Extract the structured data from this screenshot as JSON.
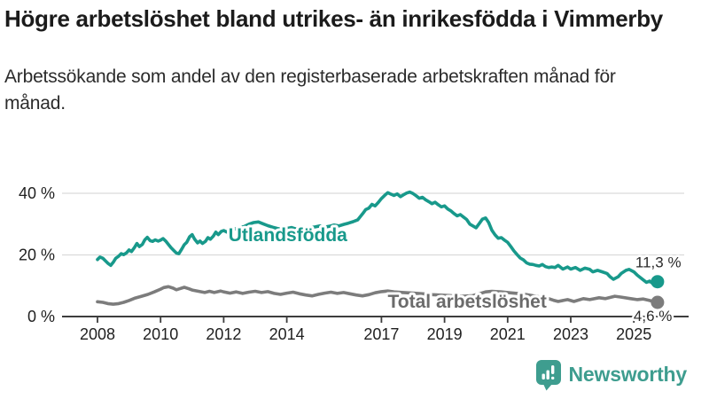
{
  "header": {
    "title": "Högre arbetslöshet bland utrikes- än inrikesfödda i Vimmerby",
    "subtitle": "Arbetssökande som andel av den registerbaserade arbetskraften månad för månad."
  },
  "branding": {
    "logo_text": "Newsworthy",
    "logo_color": "#3E9D8F"
  },
  "chart_data": {
    "type": "line",
    "title": "Högre arbetslöshet bland utrikes- än inrikesfödda i Vimmerby",
    "xlabel": "",
    "ylabel": "",
    "unit": "%",
    "xlim": [
      2008,
      2025.9
    ],
    "ylim": [
      0,
      45
    ],
    "grid": "horizontal",
    "legend_position": "inline-labels",
    "x_ticks": [
      {
        "year": 2008,
        "label": "2008"
      },
      {
        "year": 2010,
        "label": "2010"
      },
      {
        "year": 2012,
        "label": "2012"
      },
      {
        "year": 2014,
        "label": "2014"
      },
      {
        "year": 2017,
        "label": "2017"
      },
      {
        "year": 2019,
        "label": "2019"
      },
      {
        "year": 2021,
        "label": "2021"
      },
      {
        "year": 2023,
        "label": "2023"
      },
      {
        "year": 2025,
        "label": "2025"
      }
    ],
    "y_ticks": [
      {
        "value": 0,
        "label": "0 %"
      },
      {
        "value": 20,
        "label": "20 %"
      },
      {
        "value": 40,
        "label": "40 %"
      }
    ],
    "y_gridlines": [
      20,
      40
    ],
    "series": [
      {
        "id": "utlandsfodda",
        "name": "Utlandsfödda",
        "color": "#18998B",
        "label_color": "#18998B",
        "end_value": 11.3,
        "end_label": "11,3 %",
        "label_pos": [
          2012.15,
          24.4
        ],
        "end_label_offset": [
          -25,
          -16
        ],
        "points": [
          [
            2008.0,
            18.5
          ],
          [
            2008.08,
            19.3
          ],
          [
            2008.17,
            18.9
          ],
          [
            2008.25,
            18.1
          ],
          [
            2008.33,
            17.3
          ],
          [
            2008.42,
            16.6
          ],
          [
            2008.5,
            17.6
          ],
          [
            2008.58,
            18.9
          ],
          [
            2008.67,
            19.6
          ],
          [
            2008.75,
            20.4
          ],
          [
            2008.83,
            20.1
          ],
          [
            2008.92,
            20.7
          ],
          [
            2009.0,
            21.6
          ],
          [
            2009.08,
            21.1
          ],
          [
            2009.17,
            22.4
          ],
          [
            2009.25,
            23.7
          ],
          [
            2009.33,
            22.7
          ],
          [
            2009.42,
            23.4
          ],
          [
            2009.5,
            24.9
          ],
          [
            2009.58,
            25.7
          ],
          [
            2009.67,
            24.6
          ],
          [
            2009.75,
            24.4
          ],
          [
            2009.83,
            24.9
          ],
          [
            2009.92,
            24.5
          ],
          [
            2010.0,
            24.8
          ],
          [
            2010.08,
            25.3
          ],
          [
            2010.17,
            24.4
          ],
          [
            2010.25,
            23.4
          ],
          [
            2010.33,
            22.4
          ],
          [
            2010.42,
            21.4
          ],
          [
            2010.5,
            20.6
          ],
          [
            2010.58,
            20.4
          ],
          [
            2010.67,
            21.9
          ],
          [
            2010.75,
            23.3
          ],
          [
            2010.83,
            24.1
          ],
          [
            2010.92,
            25.9
          ],
          [
            2011.0,
            26.6
          ],
          [
            2011.08,
            25.1
          ],
          [
            2011.17,
            23.9
          ],
          [
            2011.25,
            24.5
          ],
          [
            2011.33,
            23.7
          ],
          [
            2011.42,
            24.4
          ],
          [
            2011.5,
            25.6
          ],
          [
            2011.58,
            25.1
          ],
          [
            2011.67,
            26.1
          ],
          [
            2011.75,
            27.4
          ],
          [
            2011.83,
            26.6
          ],
          [
            2011.92,
            27.6
          ],
          [
            2012.0,
            27.9
          ],
          [
            2012.1,
            27.4
          ],
          [
            2012.2,
            28.0
          ],
          [
            2012.35,
            28.4
          ],
          [
            2012.5,
            28.8
          ],
          [
            2012.65,
            29.2
          ],
          [
            2012.8,
            30.0
          ],
          [
            2012.95,
            30.5
          ],
          [
            2013.1,
            30.7
          ],
          [
            2013.25,
            30.1
          ],
          [
            2013.4,
            29.5
          ],
          [
            2013.55,
            29.0
          ],
          [
            2013.7,
            28.6
          ],
          [
            2013.85,
            28.3
          ],
          [
            2014.0,
            28.6
          ],
          [
            2014.15,
            28.9
          ],
          [
            2014.3,
            28.4
          ],
          [
            2014.45,
            28.8
          ],
          [
            2014.6,
            28.5
          ],
          [
            2014.75,
            28.9
          ],
          [
            2014.9,
            29.1
          ],
          [
            2015.05,
            29.4
          ],
          [
            2015.2,
            29.0
          ],
          [
            2015.35,
            29.3
          ],
          [
            2015.5,
            29.7
          ],
          [
            2015.65,
            29.4
          ],
          [
            2015.8,
            29.9
          ],
          [
            2015.95,
            30.3
          ],
          [
            2016.1,
            30.8
          ],
          [
            2016.25,
            31.4
          ],
          [
            2016.4,
            33.3
          ],
          [
            2016.5,
            34.7
          ],
          [
            2016.6,
            35.2
          ],
          [
            2016.7,
            36.4
          ],
          [
            2016.8,
            35.9
          ],
          [
            2016.9,
            37.0
          ],
          [
            2017.0,
            38.3
          ],
          [
            2017.1,
            39.3
          ],
          [
            2017.2,
            40.2
          ],
          [
            2017.3,
            39.7
          ],
          [
            2017.4,
            39.3
          ],
          [
            2017.5,
            39.8
          ],
          [
            2017.6,
            38.9
          ],
          [
            2017.7,
            39.5
          ],
          [
            2017.8,
            40.1
          ],
          [
            2017.9,
            40.4
          ],
          [
            2018.0,
            39.9
          ],
          [
            2018.1,
            39.2
          ],
          [
            2018.2,
            38.4
          ],
          [
            2018.3,
            38.7
          ],
          [
            2018.4,
            37.9
          ],
          [
            2018.5,
            37.3
          ],
          [
            2018.6,
            36.6
          ],
          [
            2018.7,
            37.1
          ],
          [
            2018.8,
            36.3
          ],
          [
            2018.9,
            35.6
          ],
          [
            2019.0,
            35.9
          ],
          [
            2019.1,
            34.9
          ],
          [
            2019.2,
            34.3
          ],
          [
            2019.3,
            33.4
          ],
          [
            2019.4,
            32.7
          ],
          [
            2019.5,
            33.1
          ],
          [
            2019.6,
            32.3
          ],
          [
            2019.7,
            31.5
          ],
          [
            2019.8,
            30.0
          ],
          [
            2019.9,
            29.4
          ],
          [
            2020.0,
            28.8
          ],
          [
            2020.1,
            30.2
          ],
          [
            2020.2,
            31.6
          ],
          [
            2020.3,
            32.0
          ],
          [
            2020.4,
            30.5
          ],
          [
            2020.5,
            28.0
          ],
          [
            2020.6,
            26.5
          ],
          [
            2020.7,
            25.4
          ],
          [
            2020.8,
            25.6
          ],
          [
            2020.9,
            24.8
          ],
          [
            2021.0,
            24.1
          ],
          [
            2021.1,
            22.7
          ],
          [
            2021.2,
            21.3
          ],
          [
            2021.3,
            20.1
          ],
          [
            2021.4,
            19.0
          ],
          [
            2021.5,
            18.4
          ],
          [
            2021.6,
            17.4
          ],
          [
            2021.7,
            17.0
          ],
          [
            2021.8,
            16.9
          ],
          [
            2021.9,
            16.6
          ],
          [
            2022.0,
            16.4
          ],
          [
            2022.1,
            16.9
          ],
          [
            2022.2,
            16.2
          ],
          [
            2022.3,
            15.9
          ],
          [
            2022.4,
            16.1
          ],
          [
            2022.5,
            15.9
          ],
          [
            2022.6,
            16.6
          ],
          [
            2022.75,
            15.4
          ],
          [
            2022.9,
            16.1
          ],
          [
            2023.0,
            15.4
          ],
          [
            2023.15,
            15.9
          ],
          [
            2023.3,
            15.0
          ],
          [
            2023.45,
            15.7
          ],
          [
            2023.6,
            15.3
          ],
          [
            2023.7,
            14.5
          ],
          [
            2023.85,
            15.0
          ],
          [
            2024.0,
            14.5
          ],
          [
            2024.15,
            14.0
          ],
          [
            2024.25,
            12.9
          ],
          [
            2024.35,
            12.1
          ],
          [
            2024.5,
            12.9
          ],
          [
            2024.6,
            14.0
          ],
          [
            2024.75,
            15.0
          ],
          [
            2024.85,
            15.3
          ],
          [
            2025.0,
            14.5
          ],
          [
            2025.1,
            13.5
          ],
          [
            2025.25,
            12.3
          ],
          [
            2025.4,
            11.1
          ],
          [
            2025.5,
            11.5
          ],
          [
            2025.6,
            10.7
          ],
          [
            2025.7,
            10.5
          ],
          [
            2025.75,
            11.3
          ]
        ]
      },
      {
        "id": "total",
        "name": "Total arbetslöshet",
        "color": "#7C7C7C",
        "label_color": "#6B6B6B",
        "end_value": 4.6,
        "end_label": "4,6 %",
        "label_pos": [
          2017.2,
          2.9
        ],
        "end_label_offset": [
          -27,
          21
        ],
        "points": [
          [
            2008.0,
            4.8
          ],
          [
            2008.17,
            4.6
          ],
          [
            2008.33,
            4.2
          ],
          [
            2008.5,
            4.0
          ],
          [
            2008.67,
            4.2
          ],
          [
            2008.83,
            4.6
          ],
          [
            2009.0,
            5.2
          ],
          [
            2009.2,
            6.0
          ],
          [
            2009.4,
            6.6
          ],
          [
            2009.6,
            7.2
          ],
          [
            2009.8,
            8.0
          ],
          [
            2010.0,
            8.9
          ],
          [
            2010.1,
            9.4
          ],
          [
            2010.25,
            9.7
          ],
          [
            2010.4,
            9.2
          ],
          [
            2010.5,
            8.7
          ],
          [
            2010.6,
            9.0
          ],
          [
            2010.75,
            9.5
          ],
          [
            2010.9,
            9.0
          ],
          [
            2011.0,
            8.6
          ],
          [
            2011.2,
            8.2
          ],
          [
            2011.4,
            7.8
          ],
          [
            2011.55,
            8.2
          ],
          [
            2011.7,
            7.8
          ],
          [
            2011.9,
            8.3
          ],
          [
            2012.0,
            8.0
          ],
          [
            2012.2,
            7.6
          ],
          [
            2012.4,
            8.0
          ],
          [
            2012.6,
            7.5
          ],
          [
            2012.8,
            7.9
          ],
          [
            2013.0,
            8.2
          ],
          [
            2013.2,
            7.8
          ],
          [
            2013.4,
            8.1
          ],
          [
            2013.6,
            7.5
          ],
          [
            2013.8,
            7.2
          ],
          [
            2014.0,
            7.6
          ],
          [
            2014.2,
            7.9
          ],
          [
            2014.4,
            7.4
          ],
          [
            2014.6,
            7.0
          ],
          [
            2014.8,
            6.7
          ],
          [
            2015.0,
            7.2
          ],
          [
            2015.2,
            7.6
          ],
          [
            2015.4,
            7.9
          ],
          [
            2015.6,
            7.5
          ],
          [
            2015.8,
            7.8
          ],
          [
            2016.0,
            7.4
          ],
          [
            2016.2,
            7.0
          ],
          [
            2016.4,
            6.7
          ],
          [
            2016.6,
            7.1
          ],
          [
            2016.8,
            7.7
          ],
          [
            2017.0,
            8.1
          ],
          [
            2017.2,
            8.3
          ],
          [
            2017.4,
            8.0
          ],
          [
            2017.7,
            7.8
          ],
          [
            2018.0,
            7.6
          ],
          [
            2018.3,
            7.4
          ],
          [
            2018.6,
            7.1
          ],
          [
            2019.0,
            6.9
          ],
          [
            2019.3,
            6.7
          ],
          [
            2019.6,
            6.6
          ],
          [
            2019.9,
            6.8
          ],
          [
            2020.1,
            7.4
          ],
          [
            2020.3,
            8.0
          ],
          [
            2020.5,
            8.2
          ],
          [
            2020.8,
            8.0
          ],
          [
            2021.0,
            7.8
          ],
          [
            2021.3,
            7.5
          ],
          [
            2021.6,
            7.1
          ],
          [
            2021.9,
            6.6
          ],
          [
            2022.1,
            6.2
          ],
          [
            2022.3,
            5.8
          ],
          [
            2022.45,
            5.3
          ],
          [
            2022.6,
            4.9
          ],
          [
            2022.9,
            5.5
          ],
          [
            2023.1,
            4.9
          ],
          [
            2023.4,
            5.8
          ],
          [
            2023.6,
            5.5
          ],
          [
            2023.9,
            6.1
          ],
          [
            2024.1,
            5.8
          ],
          [
            2024.4,
            6.6
          ],
          [
            2024.6,
            6.3
          ],
          [
            2024.9,
            5.8
          ],
          [
            2025.1,
            5.5
          ],
          [
            2025.3,
            5.7
          ],
          [
            2025.5,
            5.2
          ],
          [
            2025.6,
            4.9
          ],
          [
            2025.75,
            4.6
          ]
        ]
      }
    ]
  }
}
